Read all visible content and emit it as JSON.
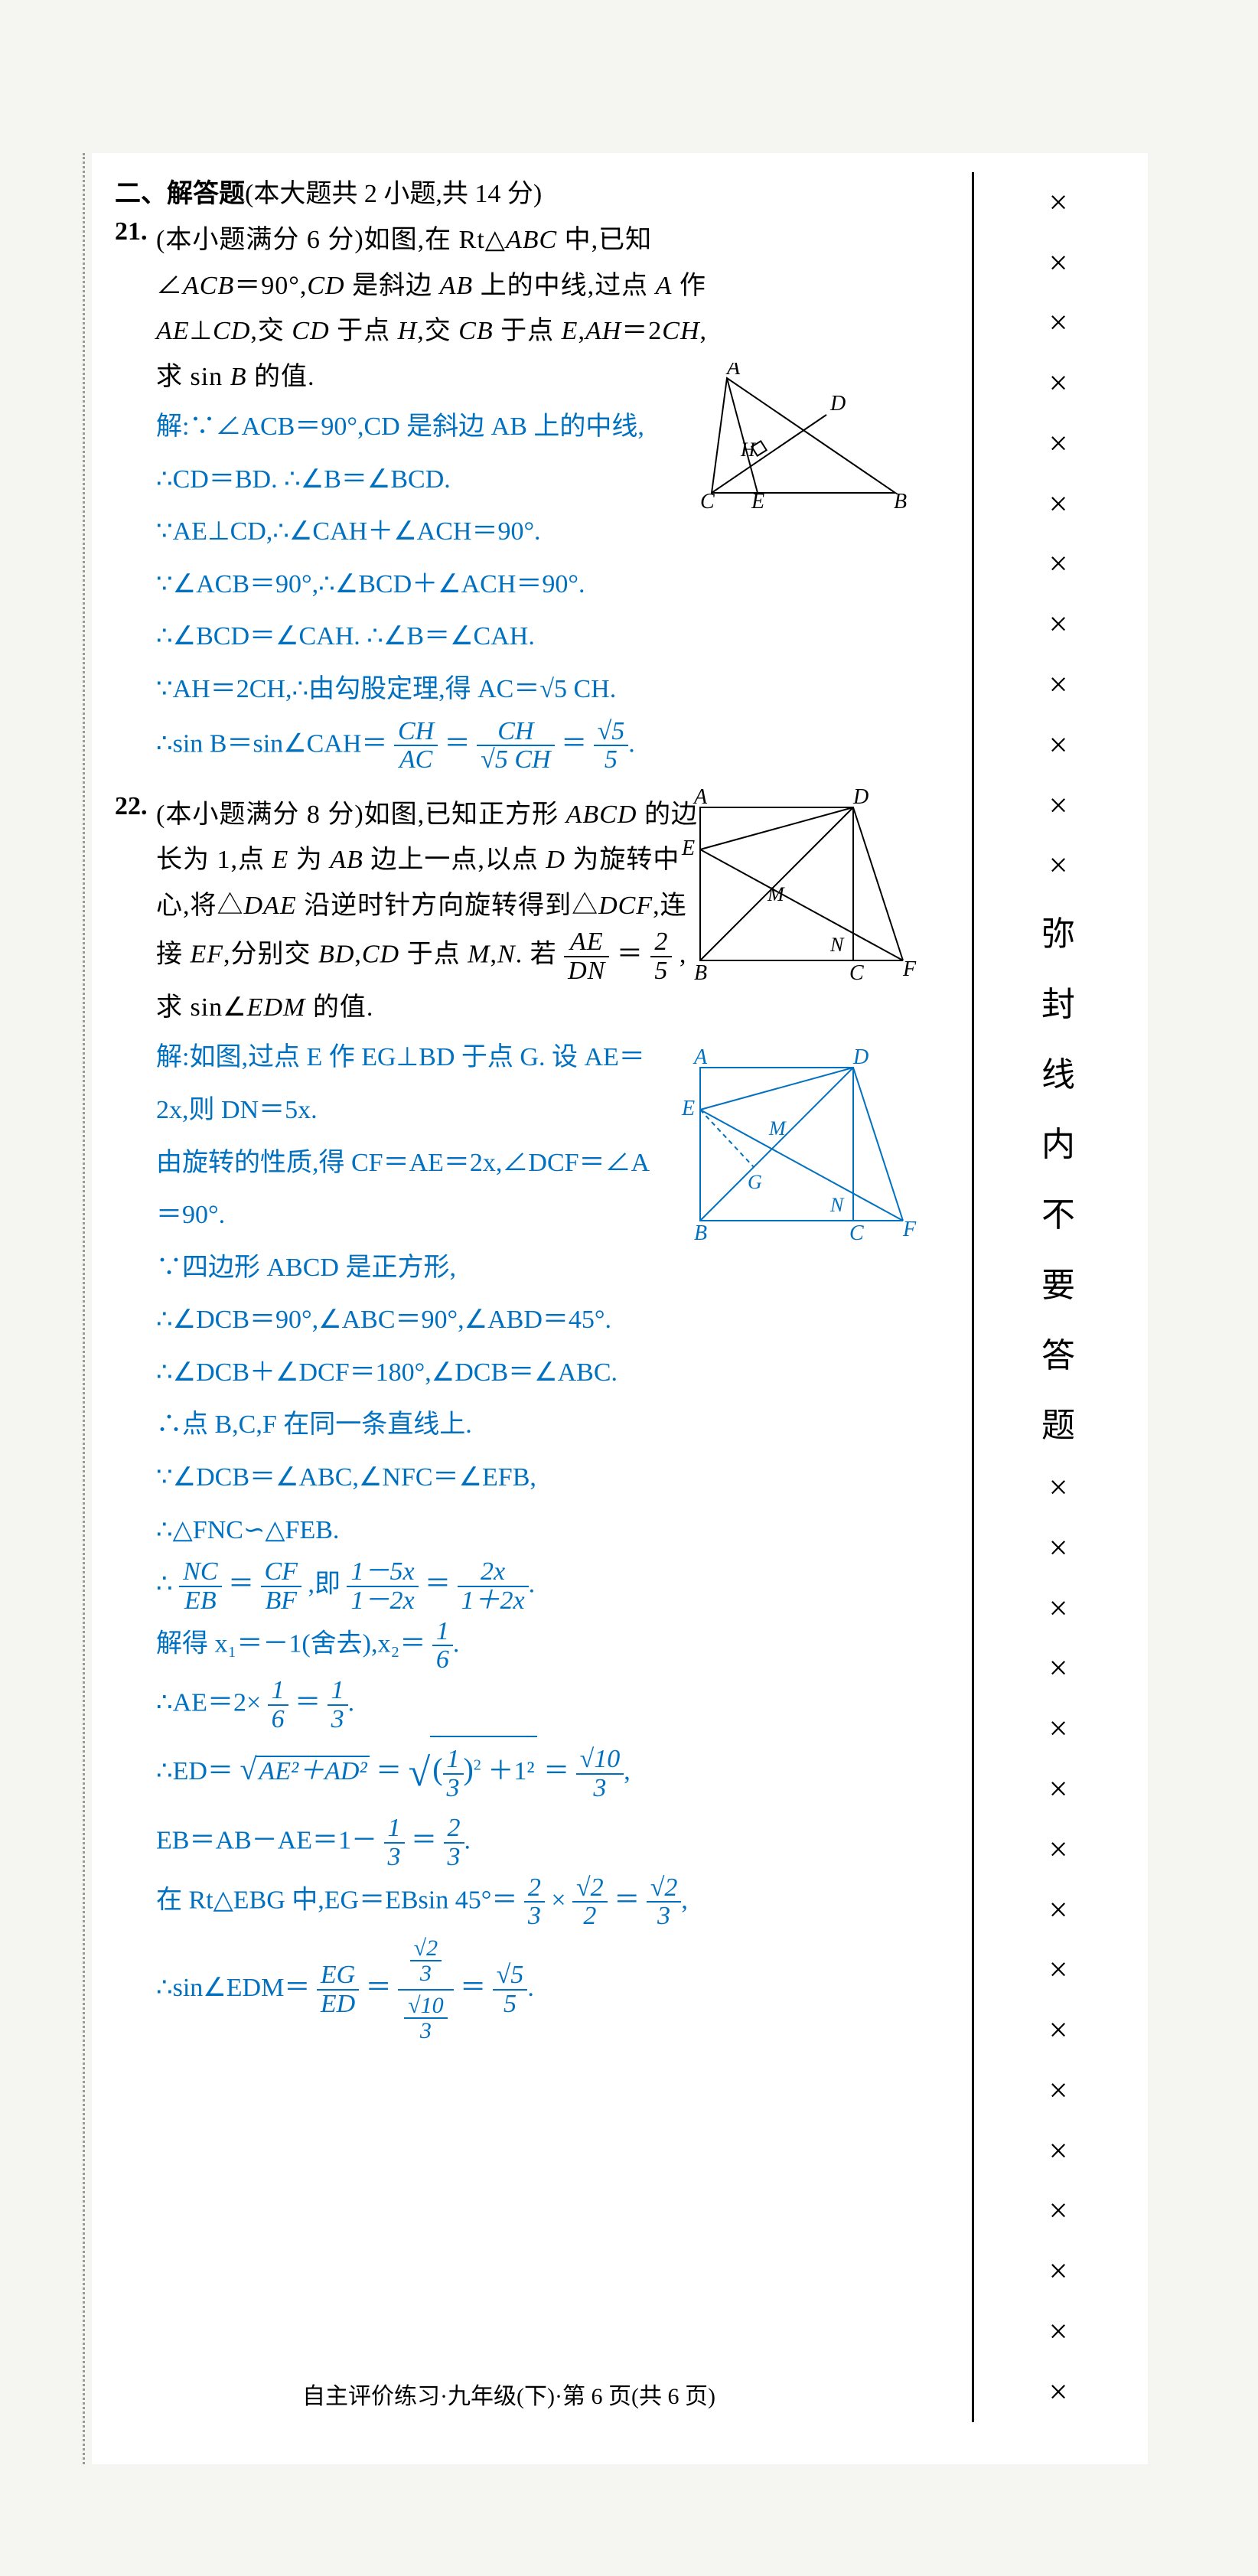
{
  "section_header": {
    "label": "二、解答题",
    "subtitle": "(本大题共 2 小题,共 14 分)"
  },
  "problems": [
    {
      "num": "21.",
      "points": "(本小题满分 6 分)",
      "text_parts": [
        "如图,在 Rt△",
        "ABC",
        " 中,已知∠",
        "ACB",
        "＝90°,",
        "CD",
        " 是斜边 ",
        "AB",
        " 上的中线,过点 ",
        "A",
        " 作 ",
        "AE",
        "⊥",
        "CD",
        ",交 ",
        "CD",
        " 于点 ",
        "H",
        ",交 ",
        "CB",
        " 于点 ",
        "E",
        ",",
        "AH",
        "＝2",
        "CH",
        ",求 sin ",
        "B",
        " 的值."
      ],
      "solution_lines": [
        "解:∵∠ACB＝90°,CD 是斜边 AB 上的中线,",
        "∴CD＝BD. ∴∠B＝∠BCD.",
        "∵AE⊥CD,∴∠CAH＋∠ACH＝90°.",
        "∵∠ACB＝90°,∴∠BCD＋∠ACH＝90°.",
        "∴∠BCD＝∠CAH. ∴∠B＝∠CAH.",
        "∵AH＝2CH,∴由勾股定理,得 AC＝√5 CH."
      ],
      "sin_line_prefix": "∴sin B＝sin∠CAH＝",
      "frac1": {
        "num": "CH",
        "den": "AC"
      },
      "frac2": {
        "num": "CH",
        "den": "√5 CH"
      },
      "frac3": {
        "num": "√5",
        "den": "5"
      },
      "figure1": {
        "labels": {
          "A": "A",
          "B": "B",
          "C": "C",
          "D": "D",
          "E": "E",
          "H": "H"
        },
        "stroke": "#000000"
      }
    },
    {
      "num": "22.",
      "points": "(本小题满分 8 分)",
      "text1": "如图,已知正方形 ",
      "text_italic1": "ABCD",
      "text2": " 的边长为 1,点 ",
      "text_italic2": "E",
      "text3": " 为 ",
      "text_italic3": "AB",
      "text4": " 边上一点,以点 ",
      "text_italic4": "D",
      "text5": " 为旋转中心,将△",
      "text_italic5": "DAE",
      "text6": " 沿逆时针方向旋转得到△",
      "text_italic6": "DCF",
      "text7": ",连接 ",
      "text_italic7": "EF",
      "text8": ",分别交 ",
      "text_italic8": "BD",
      "text9": ",",
      "text_italic9": "CD",
      "text10": " 于点 ",
      "text_italic10": "M",
      "text11": ",",
      "text_italic11": "N",
      "text12": ". 若",
      "frac_ae_dn": {
        "num": "AE",
        "den": "DN"
      },
      "text13": "＝",
      "frac_2_5": {
        "num": "2",
        "den": "5"
      },
      "text14": ",求 sin∠",
      "text_italic12": "EDM",
      "text15": " 的值.",
      "solution_lines_a": [
        "解:如图,过点 E 作 EG⊥BD 于点 G. 设 AE＝",
        "2x,则 DN＝5x.",
        "由旋转的性质,得 CF＝AE＝2x,∠DCF＝∠A",
        "＝90°.",
        "∵四边形 ABCD 是正方形,",
        "∴∠DCB＝90°,∠ABC＝90°,∠ABD＝45°.",
        "∴∠DCB＋∠DCF＝180°,∠DCB＝∠ABC.",
        "∴点 B,C,F 在同一条直线上.",
        "∵∠DCB＝∠ABC,∠NFC＝∠EFB,",
        "∴△FNC∽△FEB."
      ],
      "ratio_line_prefix": "∴",
      "frac_nc_eb": {
        "num": "NC",
        "den": "EB"
      },
      "eq1": "＝",
      "frac_cf_bf": {
        "num": "CF",
        "den": "BF"
      },
      "ratio_mid": ",即",
      "frac_r1": {
        "num": "1－5x",
        "den": "1－2x"
      },
      "eq2": "＝",
      "frac_r2": {
        "num": "2x",
        "den": "1＋2x"
      },
      "solve_prefix": "解得 x₁＝－1(舍去),x₂＝",
      "frac_1_6": {
        "num": "1",
        "den": "6"
      },
      "ae_line_prefix": "∴AE＝2×",
      "frac_1_6b": {
        "num": "1",
        "den": "6"
      },
      "eq3": "＝",
      "frac_1_3": {
        "num": "1",
        "den": "3"
      },
      "ed_line_prefix": "∴ED＝",
      "ed_sqrt_content": "AE²＋AD²",
      "ed_eq": "＝",
      "ed_sqrt2_num": "1",
      "ed_sqrt2_den": "3",
      "ed_plus1": "＋1²",
      "ed_eq2": "＝",
      "frac_sqrt10_3": {
        "num": "√10",
        "den": "3"
      },
      "eb_line_prefix": "EB＝AB－AE＝1－",
      "frac_1_3b": {
        "num": "1",
        "den": "3"
      },
      "eq4": "＝",
      "frac_2_3": {
        "num": "2",
        "den": "3"
      },
      "eg_line_prefix": "在 Rt△EBG 中,EG＝EBsin 45°＝",
      "frac_2_3b": {
        "num": "2",
        "den": "3"
      },
      "times": "×",
      "frac_sqrt2_2": {
        "num": "√2",
        "den": "2"
      },
      "eq5": "＝",
      "frac_sqrt2_3": {
        "num": "√2",
        "den": "3"
      },
      "final_prefix": "∴sin∠EDM＝",
      "frac_eg_ed": {
        "num": "EG",
        "den": "ED"
      },
      "eq6": "＝",
      "final_big_num": "√2",
      "final_big_num_den": "3",
      "final_big_den": "√10",
      "final_big_den_den": "3",
      "eq7": "＝",
      "frac_sqrt5_5": {
        "num": "√5",
        "den": "5"
      },
      "figure2": {
        "labels": {
          "A": "A",
          "B": "B",
          "C": "C",
          "D": "D",
          "E": "E",
          "F": "F",
          "M": "M",
          "N": "N"
        },
        "stroke": "#000000"
      },
      "figure3": {
        "labels": {
          "A": "A",
          "B": "B",
          "C": "C",
          "D": "D",
          "E": "E",
          "F": "F",
          "M": "M",
          "N": "N",
          "G": "G"
        },
        "stroke": "#0070c0"
      }
    }
  ],
  "margin_text": {
    "chars": [
      "弥",
      "封",
      "线",
      "内",
      "不",
      "要",
      "答",
      "题"
    ],
    "x_symbol": "×"
  },
  "footer": "自主评价练习·九年级(下)·第 6 页(共 6 页)",
  "colors": {
    "text": "#000000",
    "solution": "#0070c0",
    "background": "#ffffff",
    "page_bg": "#f5f5f2"
  }
}
